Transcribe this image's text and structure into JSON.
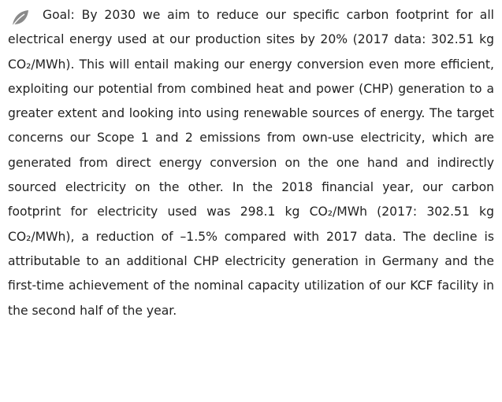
{
  "paragraph": "Goal: By 2030 we aim to reduce our specific carbon footprint for all electrical energy used at our production sites by 20% (2017 data: 302.51 kg CO₂/MWh). This will entail making our energy conversion even more efficient, exploiting our potential from combined heat and power (CHP) generation to a greater extent and looking into using renewable sources of energy. The target concerns our Scope 1 and 2 emissions from own-use electricity, which are generated from direct energy conversion on the one hand and indirectly sourced electricity on the other. In the 2018 financial year, our carbon footprint for electricity used was 298.1 kg CO₂/MWh (2017: 302.51 kg CO₂/MWh), a reduction of –1.5% compared with 2017 data. The decline is attributable to an additional CHP electricity generation in Germany and the first-time achievement of the nominal capacity utilization of our KCF facility in the second half of the year."
}
